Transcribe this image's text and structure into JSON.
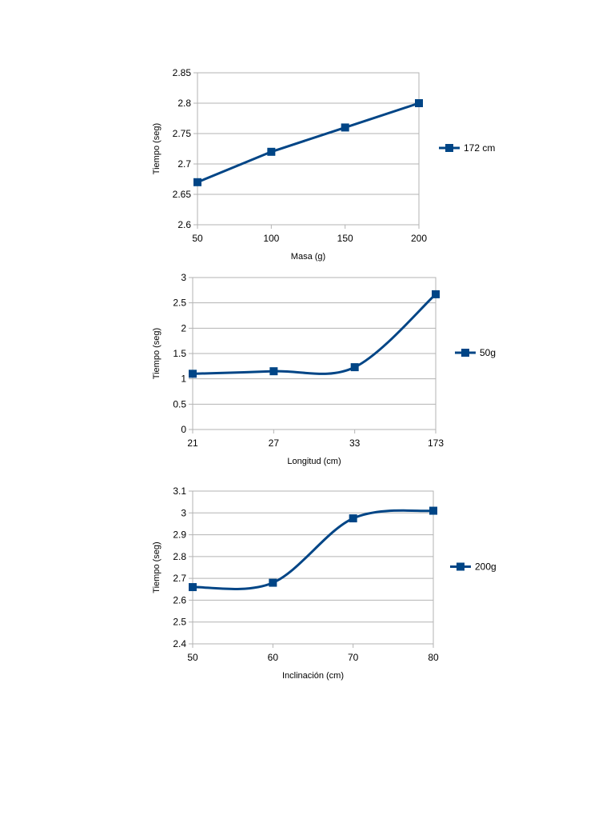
{
  "chart_data": [
    {
      "type": "line",
      "smooth": false,
      "xlabel": "Masa (g)",
      "ylabel": "Tiempo (seg)",
      "categories": [
        "50",
        "100",
        "150",
        "200"
      ],
      "yticks": [
        "2.6",
        "2.65",
        "2.7",
        "2.75",
        "2.8",
        "2.85"
      ],
      "ylim": [
        2.6,
        2.85
      ],
      "grid": true,
      "legend_position": "right",
      "series": [
        {
          "name": "172 cm",
          "values": [
            2.67,
            2.72,
            2.76,
            2.8
          ]
        }
      ],
      "color": "#004586"
    },
    {
      "type": "line",
      "smooth": true,
      "xlabel": "Longitud (cm)",
      "ylabel": "Tiempo (seg)",
      "categories": [
        "21",
        "27",
        "33",
        "173"
      ],
      "yticks": [
        "0",
        "0.5",
        "1",
        "1.5",
        "2",
        "2.5",
        "3"
      ],
      "ylim": [
        0,
        3
      ],
      "grid": true,
      "legend_position": "right",
      "series": [
        {
          "name": "50g",
          "values": [
            1.1,
            1.15,
            1.23,
            2.67
          ]
        }
      ],
      "color": "#004586"
    },
    {
      "type": "line",
      "smooth": true,
      "xlabel": "Inclinación (cm)",
      "ylabel": "Tiempo (seg)",
      "categories": [
        "50",
        "60",
        "70",
        "80"
      ],
      "yticks": [
        "2.4",
        "2.5",
        "2.6",
        "2.7",
        "2.8",
        "2.9",
        "3",
        "3.1"
      ],
      "ylim": [
        2.4,
        3.1
      ],
      "grid": true,
      "legend_position": "right",
      "series": [
        {
          "name": "200g",
          "values": [
            2.66,
            2.68,
            2.975,
            3.01
          ]
        }
      ],
      "color": "#004586"
    }
  ]
}
